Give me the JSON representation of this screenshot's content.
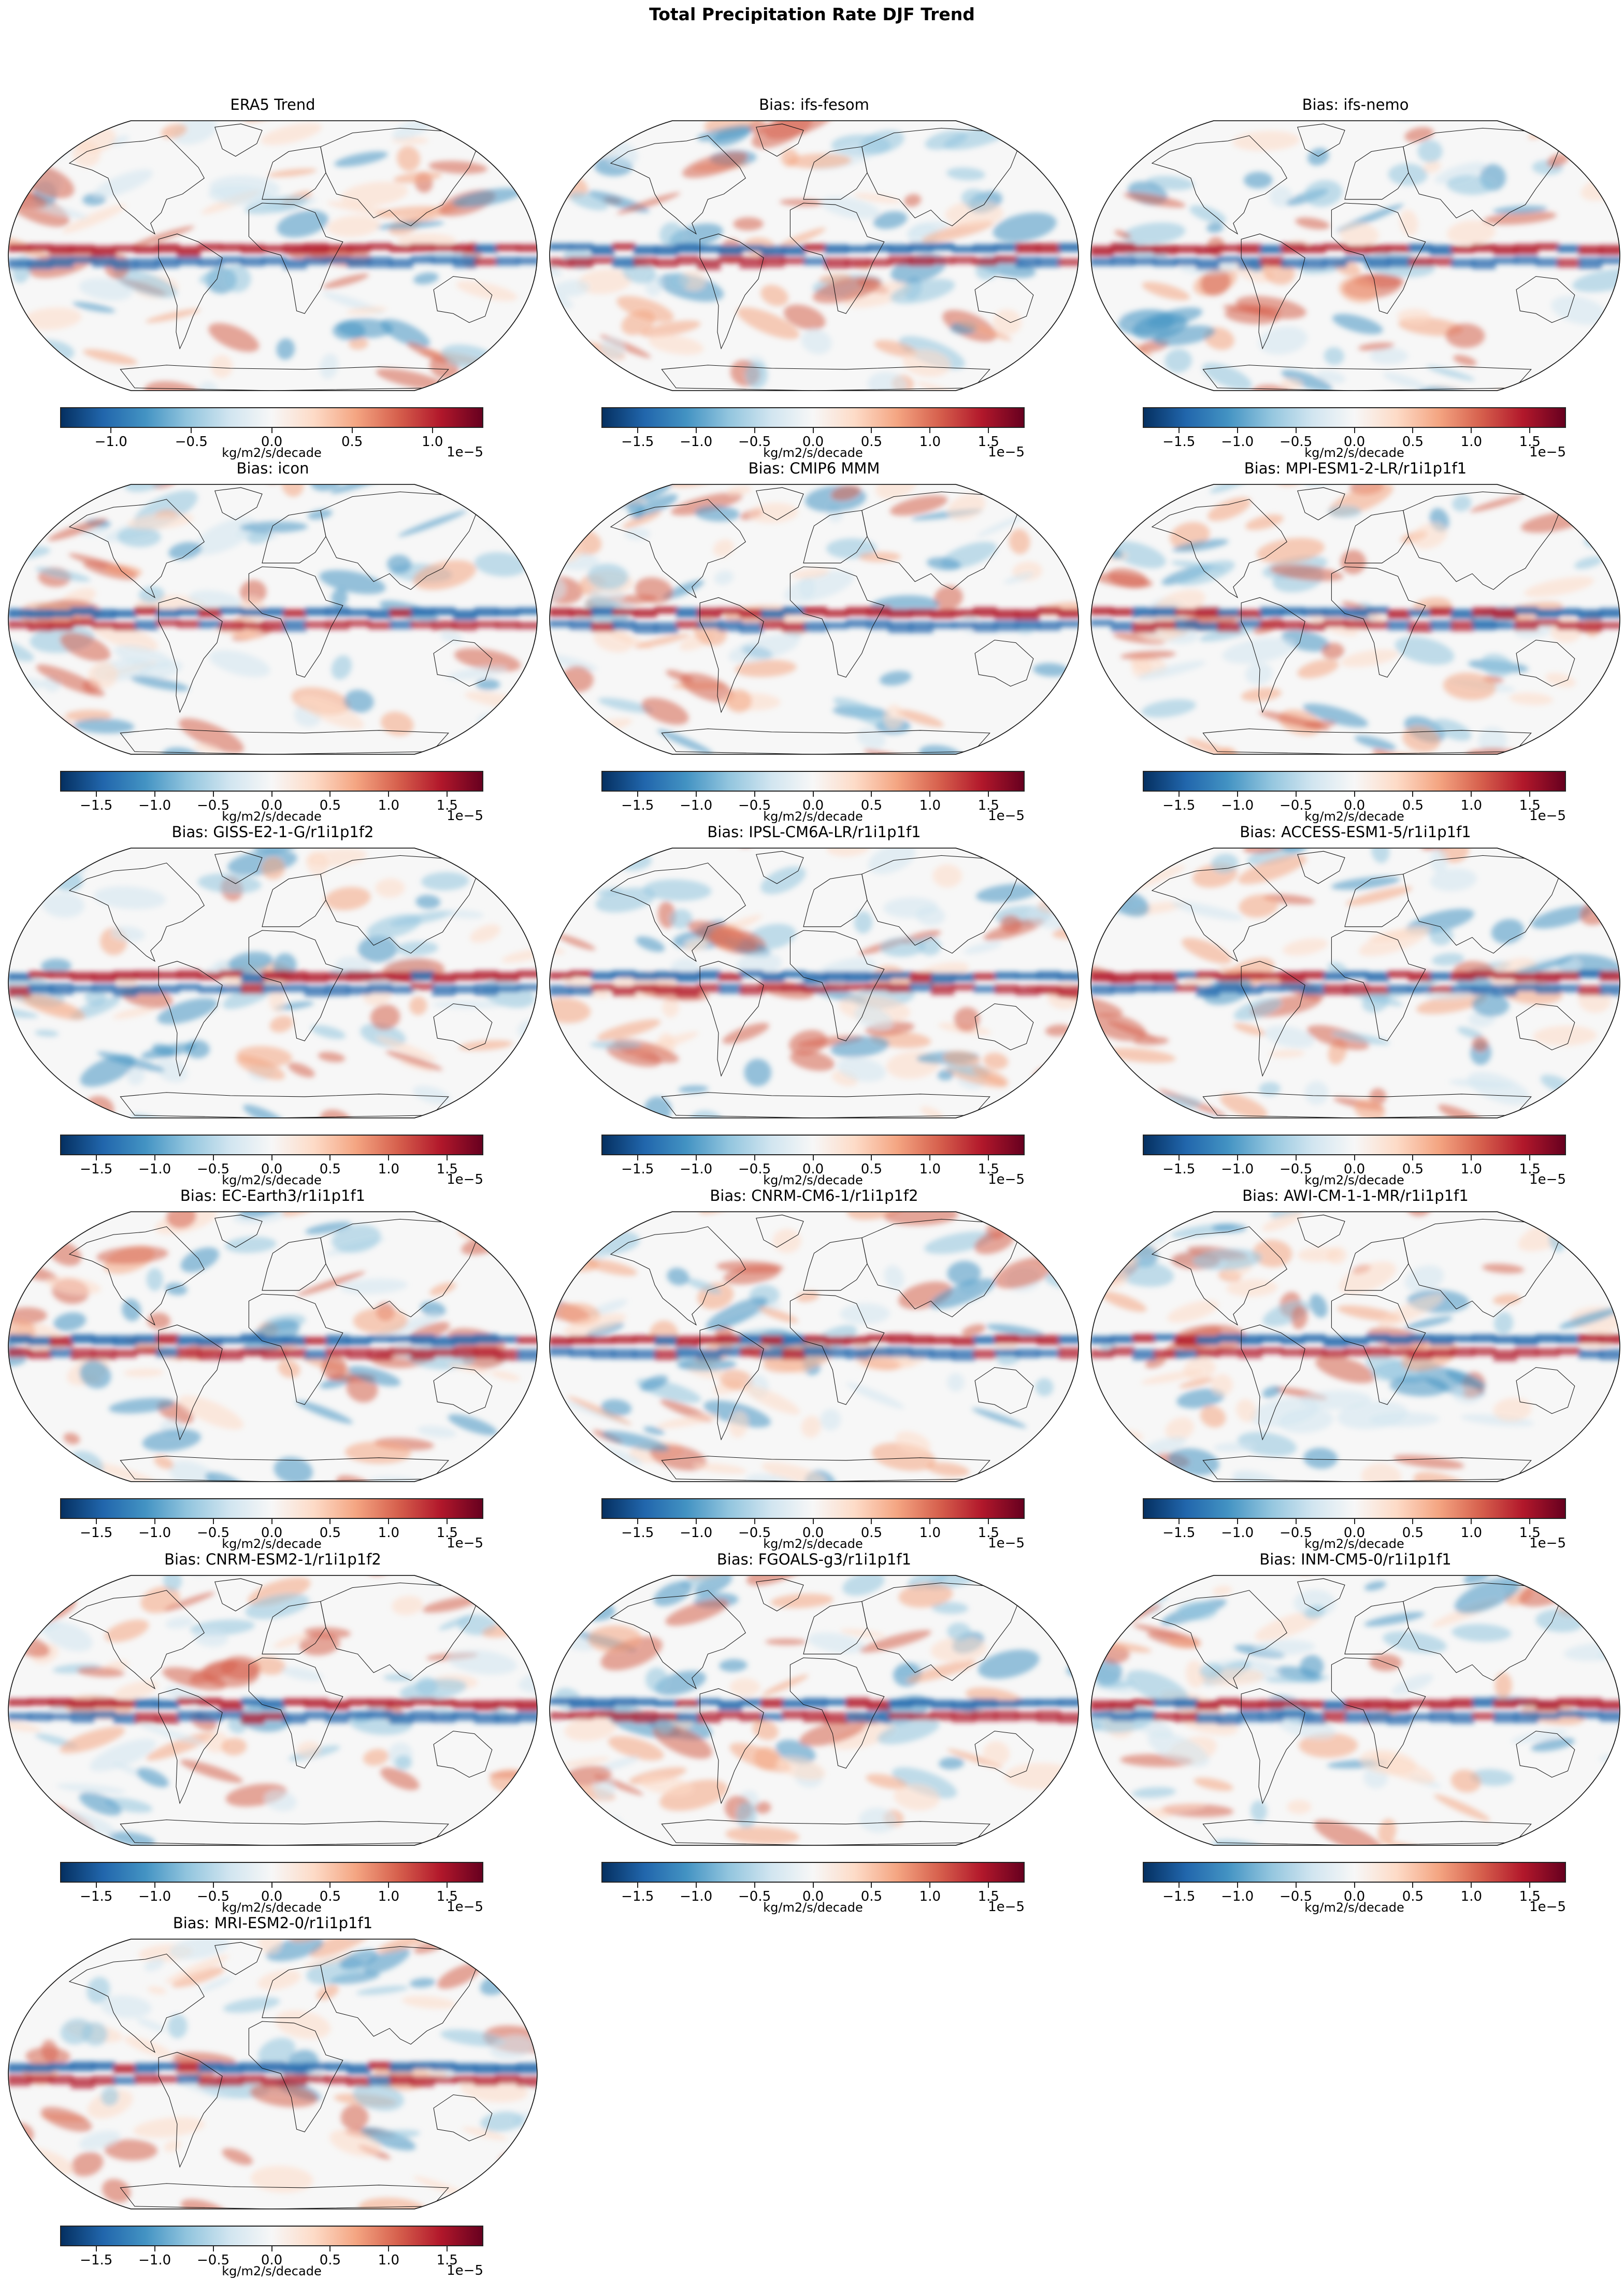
{
  "figure": {
    "suptitle": "Total Precipitation Rate DJF Trend"
  },
  "chart_data": {
    "type": "heatmap",
    "title": "Total Precipitation Rate DJF Trend",
    "projection": "Robinson",
    "colormap": "RdBu_r",
    "colormap_stops": [
      "#053061",
      "#2166ac",
      "#4393c3",
      "#92c5de",
      "#d1e5f0",
      "#f7f7f7",
      "#fddbc7",
      "#f4a582",
      "#d6604d",
      "#b2182b",
      "#67001f"
    ],
    "panels": [
      {
        "title": "ERA5 Trend",
        "colorbar": {
          "vmin": -1.31,
          "vmax": 1.31,
          "ticks": [
            -1.0,
            -0.5,
            0.0,
            0.5,
            1.0
          ],
          "tick_labels": [
            "−1.0",
            "−0.5",
            "0.0",
            "0.5",
            "1.0"
          ],
          "label": "kg/m2/s/decade",
          "exponent": "1e−5"
        }
      },
      {
        "title": "Bias: ifs-fesom",
        "colorbar": {
          "vmin": -1.8,
          "vmax": 1.8,
          "ticks": [
            -1.5,
            -1.0,
            -0.5,
            0.0,
            0.5,
            1.0,
            1.5
          ],
          "tick_labels": [
            "−1.5",
            "−1.0",
            "−0.5",
            "0.0",
            "0.5",
            "1.0",
            "1.5"
          ],
          "label": "kg/m2/s/decade",
          "exponent": "1e−5"
        }
      },
      {
        "title": "Bias: ifs-nemo",
        "colorbar": {
          "vmin": -1.8,
          "vmax": 1.8,
          "ticks": [
            -1.5,
            -1.0,
            -0.5,
            0.0,
            0.5,
            1.0,
            1.5
          ],
          "tick_labels": [
            "−1.5",
            "−1.0",
            "−0.5",
            "0.0",
            "0.5",
            "1.0",
            "1.5"
          ],
          "label": "kg/m2/s/decade",
          "exponent": "1e−5"
        }
      },
      {
        "title": "Bias: icon",
        "colorbar": {
          "vmin": -1.8,
          "vmax": 1.8,
          "ticks": [
            -1.5,
            -1.0,
            -0.5,
            0.0,
            0.5,
            1.0,
            1.5
          ],
          "tick_labels": [
            "−1.5",
            "−1.0",
            "−0.5",
            "0.0",
            "0.5",
            "1.0",
            "1.5"
          ],
          "label": "kg/m2/s/decade",
          "exponent": "1e−5"
        }
      },
      {
        "title": "Bias: CMIP6 MMM",
        "colorbar": {
          "vmin": -1.8,
          "vmax": 1.8,
          "ticks": [
            -1.5,
            -1.0,
            -0.5,
            0.0,
            0.5,
            1.0,
            1.5
          ],
          "tick_labels": [
            "−1.5",
            "−1.0",
            "−0.5",
            "0.0",
            "0.5",
            "1.0",
            "1.5"
          ],
          "label": "kg/m2/s/decade",
          "exponent": "1e−5"
        }
      },
      {
        "title": "Bias: MPI-ESM1-2-LR/r1i1p1f1",
        "colorbar": {
          "vmin": -1.8,
          "vmax": 1.8,
          "ticks": [
            -1.5,
            -1.0,
            -0.5,
            0.0,
            0.5,
            1.0,
            1.5
          ],
          "tick_labels": [
            "−1.5",
            "−1.0",
            "−0.5",
            "0.0",
            "0.5",
            "1.0",
            "1.5"
          ],
          "label": "kg/m2/s/decade",
          "exponent": "1e−5"
        }
      },
      {
        "title": "Bias: GISS-E2-1-G/r1i1p1f2",
        "colorbar": {
          "vmin": -1.8,
          "vmax": 1.8,
          "ticks": [
            -1.5,
            -1.0,
            -0.5,
            0.0,
            0.5,
            1.0,
            1.5
          ],
          "tick_labels": [
            "−1.5",
            "−1.0",
            "−0.5",
            "0.0",
            "0.5",
            "1.0",
            "1.5"
          ],
          "label": "kg/m2/s/decade",
          "exponent": "1e−5"
        }
      },
      {
        "title": "Bias: IPSL-CM6A-LR/r1i1p1f1",
        "colorbar": {
          "vmin": -1.8,
          "vmax": 1.8,
          "ticks": [
            -1.5,
            -1.0,
            -0.5,
            0.0,
            0.5,
            1.0,
            1.5
          ],
          "tick_labels": [
            "−1.5",
            "−1.0",
            "−0.5",
            "0.0",
            "0.5",
            "1.0",
            "1.5"
          ],
          "label": "kg/m2/s/decade",
          "exponent": "1e−5"
        }
      },
      {
        "title": "Bias: ACCESS-ESM1-5/r1i1p1f1",
        "colorbar": {
          "vmin": -1.8,
          "vmax": 1.8,
          "ticks": [
            -1.5,
            -1.0,
            -0.5,
            0.0,
            0.5,
            1.0,
            1.5
          ],
          "tick_labels": [
            "−1.5",
            "−1.0",
            "−0.5",
            "0.0",
            "0.5",
            "1.0",
            "1.5"
          ],
          "label": "kg/m2/s/decade",
          "exponent": "1e−5"
        }
      },
      {
        "title": "Bias: EC-Earth3/r1i1p1f1",
        "colorbar": {
          "vmin": -1.8,
          "vmax": 1.8,
          "ticks": [
            -1.5,
            -1.0,
            -0.5,
            0.0,
            0.5,
            1.0,
            1.5
          ],
          "tick_labels": [
            "−1.5",
            "−1.0",
            "−0.5",
            "0.0",
            "0.5",
            "1.0",
            "1.5"
          ],
          "label": "kg/m2/s/decade",
          "exponent": "1e−5"
        }
      },
      {
        "title": "Bias: CNRM-CM6-1/r1i1p1f2",
        "colorbar": {
          "vmin": -1.8,
          "vmax": 1.8,
          "ticks": [
            -1.5,
            -1.0,
            -0.5,
            0.0,
            0.5,
            1.0,
            1.5
          ],
          "tick_labels": [
            "−1.5",
            "−1.0",
            "−0.5",
            "0.0",
            "0.5",
            "1.0",
            "1.5"
          ],
          "label": "kg/m2/s/decade",
          "exponent": "1e−5"
        }
      },
      {
        "title": "Bias: AWI-CM-1-1-MR/r1i1p1f1",
        "colorbar": {
          "vmin": -1.8,
          "vmax": 1.8,
          "ticks": [
            -1.5,
            -1.0,
            -0.5,
            0.0,
            0.5,
            1.0,
            1.5
          ],
          "tick_labels": [
            "−1.5",
            "−1.0",
            "−0.5",
            "0.0",
            "0.5",
            "1.0",
            "1.5"
          ],
          "label": "kg/m2/s/decade",
          "exponent": "1e−5"
        }
      },
      {
        "title": "Bias: CNRM-ESM2-1/r1i1p1f2",
        "colorbar": {
          "vmin": -1.8,
          "vmax": 1.8,
          "ticks": [
            -1.5,
            -1.0,
            -0.5,
            0.0,
            0.5,
            1.0,
            1.5
          ],
          "tick_labels": [
            "−1.5",
            "−1.0",
            "−0.5",
            "0.0",
            "0.5",
            "1.0",
            "1.5"
          ],
          "label": "kg/m2/s/decade",
          "exponent": "1e−5"
        }
      },
      {
        "title": "Bias: FGOALS-g3/r1i1p1f1",
        "colorbar": {
          "vmin": -1.8,
          "vmax": 1.8,
          "ticks": [
            -1.5,
            -1.0,
            -0.5,
            0.0,
            0.5,
            1.0,
            1.5
          ],
          "tick_labels": [
            "−1.5",
            "−1.0",
            "−0.5",
            "0.0",
            "0.5",
            "1.0",
            "1.5"
          ],
          "label": "kg/m2/s/decade",
          "exponent": "1e−5"
        }
      },
      {
        "title": "Bias: INM-CM5-0/r1i1p1f1",
        "colorbar": {
          "vmin": -1.8,
          "vmax": 1.8,
          "ticks": [
            -1.5,
            -1.0,
            -0.5,
            0.0,
            0.5,
            1.0,
            1.5
          ],
          "tick_labels": [
            "−1.5",
            "−1.0",
            "−0.5",
            "0.0",
            "0.5",
            "1.0",
            "1.5"
          ],
          "label": "kg/m2/s/decade",
          "exponent": "1e−5"
        }
      },
      {
        "title": "Bias: MRI-ESM2-0/r1i1p1f1",
        "colorbar": {
          "vmin": -1.8,
          "vmax": 1.8,
          "ticks": [
            -1.5,
            -1.0,
            -0.5,
            0.0,
            0.5,
            1.0,
            1.5
          ],
          "tick_labels": [
            "−1.5",
            "−1.0",
            "−0.5",
            "0.0",
            "0.5",
            "1.0",
            "1.5"
          ],
          "label": "kg/m2/s/decade",
          "exponent": "1e−5"
        }
      }
    ]
  }
}
